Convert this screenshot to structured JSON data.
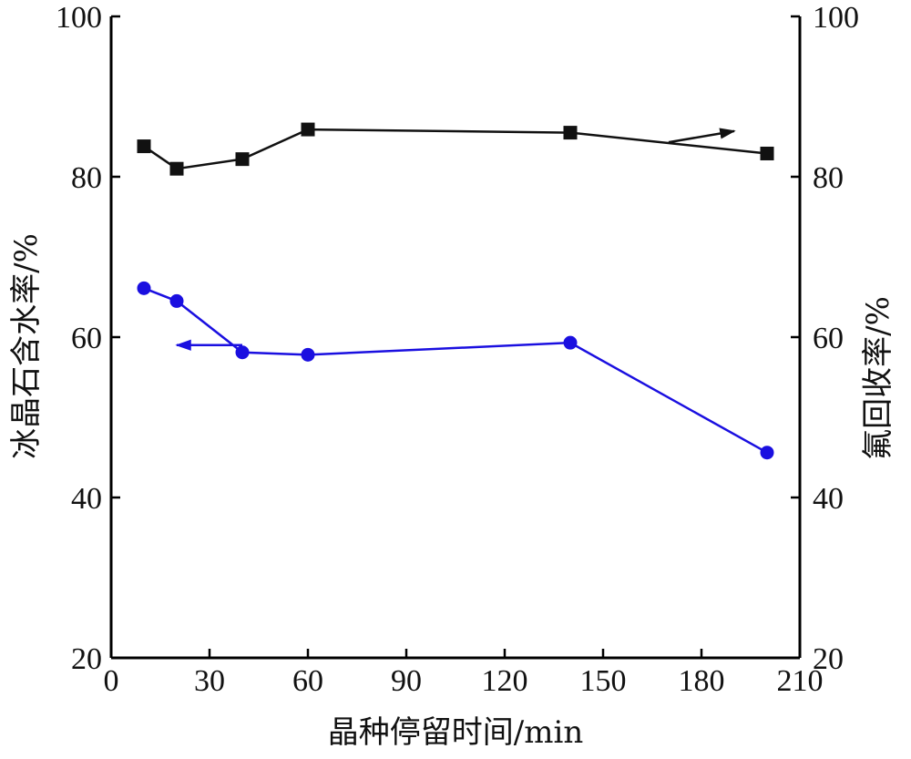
{
  "chart_data": {
    "type": "line",
    "xlabel": "晶种停留时间/min",
    "ylabel_left": "冰晶石含水率/%",
    "ylabel_right": "氟回收率/%",
    "xlim": [
      0,
      210
    ],
    "xticks": [
      0,
      30,
      60,
      90,
      120,
      150,
      180,
      210
    ],
    "ylim_left": [
      20,
      100
    ],
    "yticks_left": [
      20,
      40,
      60,
      80,
      100
    ],
    "ylim_right": [
      20,
      100
    ],
    "yticks_right": [
      20,
      40,
      60,
      80,
      100
    ],
    "grid": false,
    "series": [
      {
        "axis": "right",
        "marker": "square",
        "color": "#111111",
        "x": [
          10,
          20,
          40,
          60,
          140,
          200
        ],
        "y": [
          83.8,
          81.0,
          82.2,
          85.9,
          85.5,
          82.9
        ],
        "arrow": {
          "from": [
            170,
            84.3
          ],
          "to": [
            190,
            85.7
          ],
          "direction": "right"
        }
      },
      {
        "axis": "left",
        "marker": "circle",
        "color": "#1a0fe0",
        "x": [
          10,
          20,
          40,
          60,
          140,
          200
        ],
        "y": [
          66.1,
          64.5,
          58.1,
          57.8,
          59.3,
          45.6
        ],
        "arrow": {
          "from": [
            40,
            59.0
          ],
          "to": [
            20,
            59.0
          ],
          "direction": "left"
        }
      }
    ]
  }
}
